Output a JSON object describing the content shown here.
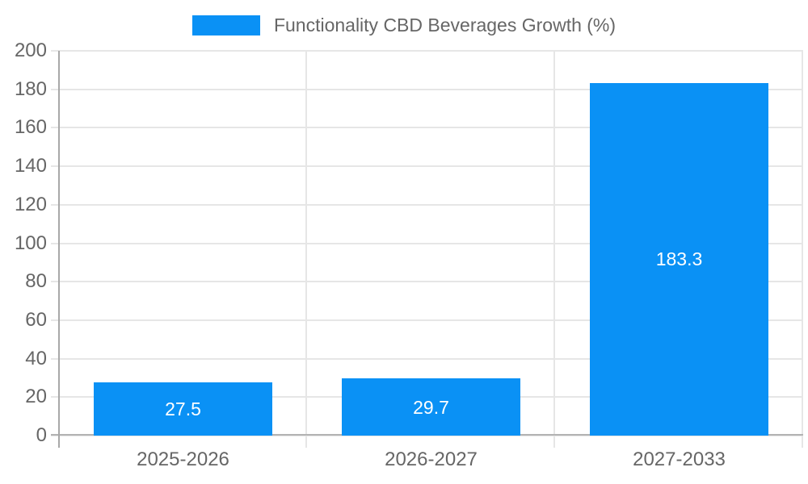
{
  "legend": {
    "label": "Functionality CBD Beverages Growth (%)"
  },
  "colors": {
    "bar": "#0a91f5",
    "grid": "#e6e6e6",
    "axis_line": "#a8a8a8",
    "baseline": "#b3b3b3",
    "tick_text": "#666666",
    "value_text": "#ffffff",
    "background": "#ffffff"
  },
  "chart_data": {
    "type": "bar",
    "title": "Functionality CBD Beverages Growth (%)",
    "categories": [
      "2025-2026",
      "2026-2027",
      "2027-2033"
    ],
    "values": [
      27.5,
      29.7,
      183.3
    ],
    "value_labels": [
      "27.5",
      "29.7",
      "183.3"
    ],
    "xlabel": "",
    "ylabel": "",
    "ylim": [
      0,
      200
    ],
    "yticks": [
      0,
      20,
      40,
      60,
      80,
      100,
      120,
      140,
      160,
      180,
      200
    ],
    "grid": true,
    "legend_position": "top",
    "value_labels_inside_bars": true
  }
}
